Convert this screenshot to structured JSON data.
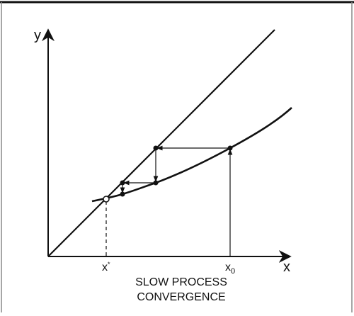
{
  "axes": {
    "y_label": "y",
    "x_label": "x"
  },
  "points": {
    "fixed": {
      "label": "x",
      "sup": "*"
    },
    "start": {
      "label": "x",
      "sub": "0"
    }
  },
  "caption": [
    "SLOW PROCESS",
    "CONVERGENCE"
  ]
}
